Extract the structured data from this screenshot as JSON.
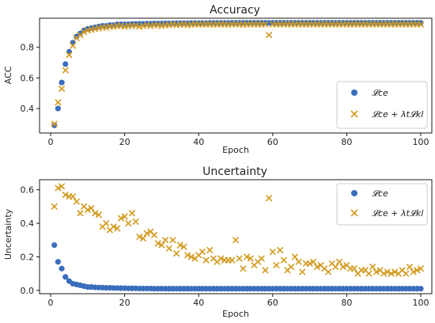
{
  "colors": {
    "ce": "#3a6ebd",
    "kl": "#d39a1f"
  },
  "chart_data": [
    {
      "type": "scatter",
      "title": "Accuracy",
      "xlabel": "Epoch",
      "ylabel": "ACC",
      "xlim": [
        -3,
        103
      ],
      "ylim": [
        0.24,
        0.99
      ],
      "xticks": [
        0,
        20,
        40,
        60,
        80,
        100
      ],
      "yticks": [
        0.4,
        0.6,
        0.8
      ],
      "legend_position": "lower-right",
      "series": [
        {
          "name": "𝓛ce",
          "marker": "circle",
          "x": [
            1,
            2,
            3,
            4,
            5,
            6,
            7,
            8,
            9,
            10,
            11,
            12,
            13,
            14,
            15,
            16,
            17,
            18,
            19,
            20,
            21,
            22,
            23,
            24,
            25,
            26,
            27,
            28,
            29,
            30,
            31,
            32,
            33,
            34,
            35,
            36,
            37,
            38,
            39,
            40,
            41,
            42,
            43,
            44,
            45,
            46,
            47,
            48,
            49,
            50,
            51,
            52,
            53,
            54,
            55,
            56,
            57,
            58,
            59,
            60,
            61,
            62,
            63,
            64,
            65,
            66,
            67,
            68,
            69,
            70,
            71,
            72,
            73,
            74,
            75,
            76,
            77,
            78,
            79,
            80,
            81,
            82,
            83,
            84,
            85,
            86,
            87,
            88,
            89,
            90,
            91,
            92,
            93,
            94,
            95,
            96,
            97,
            98,
            99,
            100
          ],
          "y": [
            0.29,
            0.4,
            0.57,
            0.69,
            0.77,
            0.83,
            0.87,
            0.89,
            0.91,
            0.92,
            0.925,
            0.93,
            0.935,
            0.94,
            0.94,
            0.945,
            0.945,
            0.95,
            0.95,
            0.95,
            0.95,
            0.952,
            0.952,
            0.953,
            0.953,
            0.954,
            0.954,
            0.955,
            0.955,
            0.955,
            0.956,
            0.956,
            0.956,
            0.957,
            0.957,
            0.957,
            0.957,
            0.958,
            0.958,
            0.958,
            0.958,
            0.958,
            0.959,
            0.959,
            0.959,
            0.959,
            0.959,
            0.959,
            0.96,
            0.96,
            0.96,
            0.96,
            0.96,
            0.96,
            0.96,
            0.96,
            0.96,
            0.96,
            0.96,
            0.96,
            0.96,
            0.96,
            0.96,
            0.96,
            0.96,
            0.96,
            0.96,
            0.96,
            0.96,
            0.96,
            0.96,
            0.96,
            0.96,
            0.96,
            0.96,
            0.96,
            0.96,
            0.96,
            0.96,
            0.96,
            0.96,
            0.96,
            0.96,
            0.96,
            0.96,
            0.96,
            0.96,
            0.96,
            0.96,
            0.96,
            0.96,
            0.96,
            0.96,
            0.96,
            0.96,
            0.96,
            0.96,
            0.96,
            0.96,
            0.96
          ]
        },
        {
          "name": "𝓛ce + λt𝓛kl",
          "marker": "x",
          "x": [
            1,
            2,
            3,
            4,
            5,
            6,
            7,
            8,
            9,
            10,
            11,
            12,
            13,
            14,
            15,
            16,
            17,
            18,
            19,
            20,
            21,
            22,
            23,
            24,
            25,
            26,
            27,
            28,
            29,
            30,
            31,
            32,
            33,
            34,
            35,
            36,
            37,
            38,
            39,
            40,
            41,
            42,
            43,
            44,
            45,
            46,
            47,
            48,
            49,
            50,
            51,
            52,
            53,
            54,
            55,
            56,
            57,
            58,
            59,
            60,
            61,
            62,
            63,
            64,
            65,
            66,
            67,
            68,
            69,
            70,
            71,
            72,
            73,
            74,
            75,
            76,
            77,
            78,
            79,
            80,
            81,
            82,
            83,
            84,
            85,
            86,
            87,
            88,
            89,
            90,
            91,
            92,
            93,
            94,
            95,
            96,
            97,
            98,
            99,
            100
          ],
          "y": [
            0.3,
            0.44,
            0.53,
            0.65,
            0.75,
            0.81,
            0.86,
            0.88,
            0.9,
            0.91,
            0.915,
            0.92,
            0.925,
            0.93,
            0.93,
            0.935,
            0.935,
            0.94,
            0.94,
            0.935,
            0.94,
            0.94,
            0.942,
            0.935,
            0.94,
            0.945,
            0.94,
            0.945,
            0.945,
            0.94,
            0.945,
            0.945,
            0.95,
            0.945,
            0.948,
            0.95,
            0.945,
            0.948,
            0.95,
            0.95,
            0.948,
            0.95,
            0.95,
            0.948,
            0.95,
            0.95,
            0.95,
            0.948,
            0.95,
            0.95,
            0.95,
            0.948,
            0.95,
            0.95,
            0.95,
            0.95,
            0.95,
            0.95,
            0.88,
            0.95,
            0.95,
            0.95,
            0.95,
            0.95,
            0.95,
            0.95,
            0.95,
            0.95,
            0.95,
            0.95,
            0.95,
            0.95,
            0.95,
            0.95,
            0.95,
            0.95,
            0.95,
            0.95,
            0.95,
            0.95,
            0.95,
            0.95,
            0.95,
            0.95,
            0.95,
            0.95,
            0.95,
            0.95,
            0.95,
            0.95,
            0.95,
            0.95,
            0.95,
            0.95,
            0.95,
            0.95,
            0.95,
            0.95,
            0.95,
            0.95
          ]
        }
      ]
    },
    {
      "type": "scatter",
      "title": "Uncertainty",
      "xlabel": "Epoch",
      "ylabel": "Uncertainty",
      "xlim": [
        -3,
        103
      ],
      "ylim": [
        -0.02,
        0.66
      ],
      "xticks": [
        0,
        20,
        40,
        60,
        80,
        100
      ],
      "yticks": [
        0.0,
        0.2,
        0.4,
        0.6
      ],
      "legend_position": "upper-right",
      "series": [
        {
          "name": "𝓛ce",
          "marker": "circle",
          "x": [
            1,
            2,
            3,
            4,
            5,
            6,
            7,
            8,
            9,
            10,
            11,
            12,
            13,
            14,
            15,
            16,
            17,
            18,
            19,
            20,
            21,
            22,
            23,
            24,
            25,
            26,
            27,
            28,
            29,
            30,
            31,
            32,
            33,
            34,
            35,
            36,
            37,
            38,
            39,
            40,
            41,
            42,
            43,
            44,
            45,
            46,
            47,
            48,
            49,
            50,
            51,
            52,
            53,
            54,
            55,
            56,
            57,
            58,
            59,
            60,
            61,
            62,
            63,
            64,
            65,
            66,
            67,
            68,
            69,
            70,
            71,
            72,
            73,
            74,
            75,
            76,
            77,
            78,
            79,
            80,
            81,
            82,
            83,
            84,
            85,
            86,
            87,
            88,
            89,
            90,
            91,
            92,
            93,
            94,
            95,
            96,
            97,
            98,
            99,
            100
          ],
          "y": [
            0.27,
            0.17,
            0.13,
            0.08,
            0.055,
            0.04,
            0.035,
            0.03,
            0.025,
            0.02,
            0.02,
            0.018,
            0.017,
            0.016,
            0.015,
            0.015,
            0.014,
            0.014,
            0.013,
            0.013,
            0.012,
            0.012,
            0.012,
            0.011,
            0.011,
            0.011,
            0.011,
            0.01,
            0.01,
            0.01,
            0.01,
            0.01,
            0.01,
            0.01,
            0.01,
            0.01,
            0.01,
            0.01,
            0.01,
            0.01,
            0.01,
            0.01,
            0.01,
            0.01,
            0.01,
            0.01,
            0.01,
            0.01,
            0.01,
            0.01,
            0.01,
            0.01,
            0.01,
            0.01,
            0.01,
            0.01,
            0.01,
            0.01,
            0.01,
            0.01,
            0.01,
            0.01,
            0.01,
            0.01,
            0.01,
            0.01,
            0.01,
            0.01,
            0.01,
            0.01,
            0.01,
            0.01,
            0.01,
            0.01,
            0.01,
            0.01,
            0.01,
            0.01,
            0.01,
            0.01,
            0.01,
            0.01,
            0.01,
            0.01,
            0.01,
            0.01,
            0.01,
            0.01,
            0.01,
            0.01,
            0.01,
            0.01,
            0.01,
            0.01,
            0.01,
            0.01,
            0.01,
            0.01,
            0.01,
            0.01
          ]
        },
        {
          "name": "𝓛ce + λt𝓛kl",
          "marker": "x",
          "x": [
            1,
            2,
            3,
            4,
            5,
            6,
            7,
            8,
            9,
            10,
            11,
            12,
            13,
            14,
            15,
            16,
            17,
            18,
            19,
            20,
            21,
            22,
            23,
            24,
            25,
            26,
            27,
            28,
            29,
            30,
            31,
            32,
            33,
            34,
            35,
            36,
            37,
            38,
            39,
            40,
            41,
            42,
            43,
            44,
            45,
            46,
            47,
            48,
            49,
            50,
            51,
            52,
            53,
            54,
            55,
            56,
            57,
            58,
            59,
            60,
            61,
            62,
            63,
            64,
            65,
            66,
            67,
            68,
            69,
            70,
            71,
            72,
            73,
            74,
            75,
            76,
            77,
            78,
            79,
            80,
            81,
            82,
            83,
            84,
            85,
            86,
            87,
            88,
            89,
            90,
            91,
            92,
            93,
            94,
            95,
            96,
            97,
            98,
            99,
            100
          ],
          "y": [
            0.5,
            0.61,
            0.62,
            0.57,
            0.56,
            0.56,
            0.53,
            0.46,
            0.5,
            0.48,
            0.49,
            0.46,
            0.45,
            0.38,
            0.4,
            0.36,
            0.38,
            0.37,
            0.43,
            0.44,
            0.4,
            0.46,
            0.41,
            0.32,
            0.31,
            0.34,
            0.35,
            0.33,
            0.28,
            0.27,
            0.3,
            0.25,
            0.3,
            0.22,
            0.27,
            0.26,
            0.21,
            0.2,
            0.19,
            0.21,
            0.23,
            0.18,
            0.24,
            0.19,
            0.17,
            0.19,
            0.18,
            0.18,
            0.18,
            0.3,
            0.19,
            0.13,
            0.2,
            0.19,
            0.15,
            0.17,
            0.19,
            0.12,
            0.55,
            0.23,
            0.15,
            0.24,
            0.18,
            0.12,
            0.14,
            0.2,
            0.17,
            0.11,
            0.16,
            0.16,
            0.17,
            0.14,
            0.15,
            0.13,
            0.11,
            0.16,
            0.14,
            0.17,
            0.14,
            0.15,
            0.13,
            0.13,
            0.1,
            0.12,
            0.12,
            0.1,
            0.14,
            0.11,
            0.12,
            0.1,
            0.11,
            0.1,
            0.11,
            0.1,
            0.12,
            0.1,
            0.14,
            0.11,
            0.12,
            0.13
          ]
        }
      ]
    }
  ]
}
